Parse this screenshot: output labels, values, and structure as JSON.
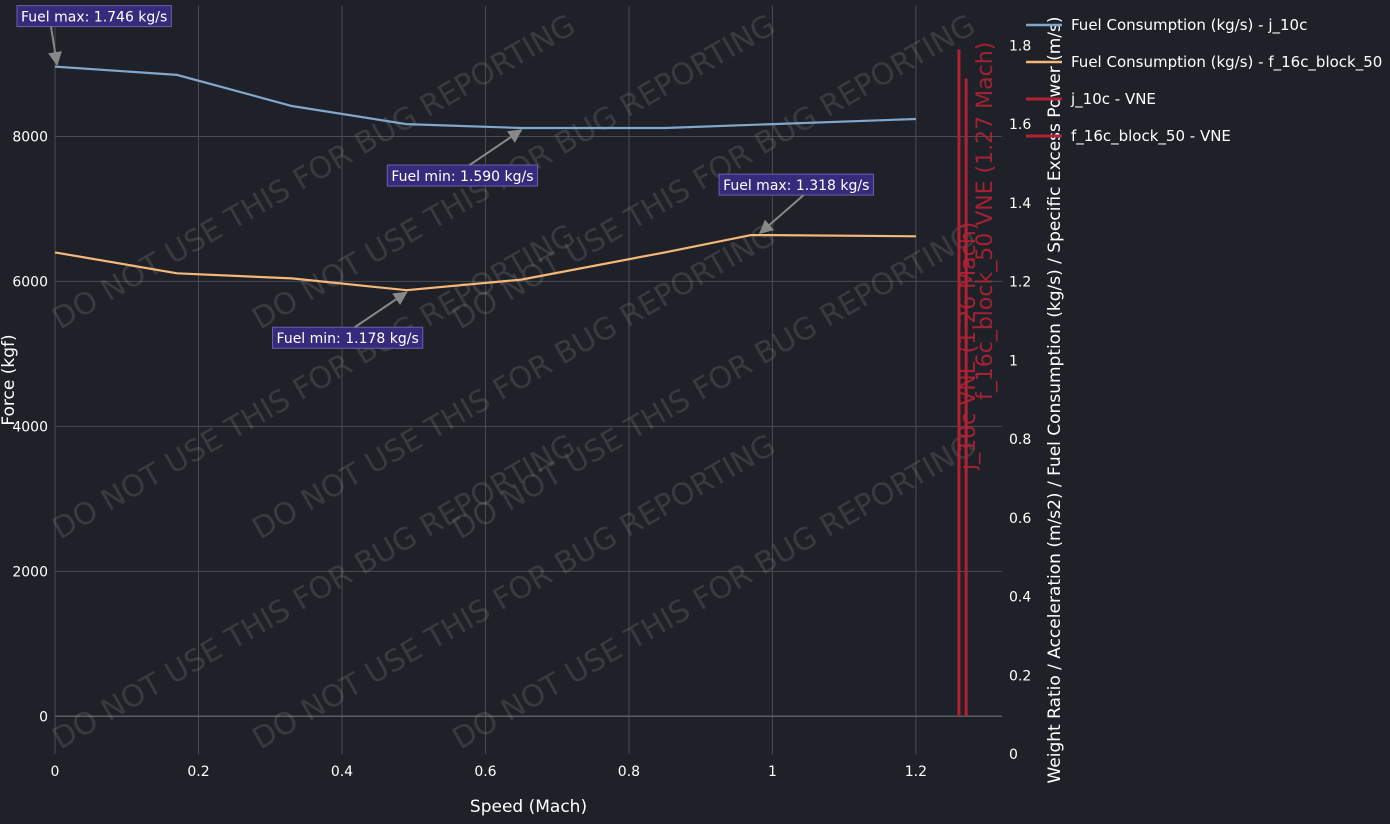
{
  "watermark": "DO NOT USE THIS FOR BUG REPORTING",
  "chart_data": {
    "type": "line",
    "xlabel": "Speed (Mach)",
    "ylabel_left": "Force (kgf)",
    "ylabel_right": "Weight Ratio / Acceleration (m/s2) / Fuel Consumption (kg/s) / Specific Excess Power (m/s)",
    "xlim": [
      0,
      1.32
    ],
    "ylim_left": [
      -520,
      9800
    ],
    "ylim_right": [
      0,
      1.9
    ],
    "x_ticks": [
      0,
      0.2,
      0.4,
      0.6,
      0.8,
      1,
      1.2
    ],
    "x_tick_labels": [
      "0",
      "0.2",
      "0.4",
      "0.6",
      "0.8",
      "1",
      "1.2"
    ],
    "y_left_ticks": [
      0,
      2000,
      4000,
      6000,
      8000
    ],
    "y_left_tick_labels": [
      "0",
      "2000",
      "4000",
      "6000",
      "8000"
    ],
    "y_right_ticks": [
      0,
      0.2,
      0.4,
      0.6,
      0.8,
      1,
      1.2,
      1.4,
      1.6,
      1.8
    ],
    "y_right_tick_labels": [
      "0",
      "0.2",
      "0.4",
      "0.6",
      "0.8",
      "1",
      "1.2",
      "1.4",
      "1.6",
      "1.8"
    ],
    "series": [
      {
        "name": "Fuel Consumption (kg/s) - j_10c",
        "color": "#7fa8cc",
        "axis": "right",
        "x": [
          0,
          0.17,
          0.33,
          0.49,
          0.65,
          0.85,
          1.0,
          1.2
        ],
        "y": [
          1.746,
          1.725,
          1.646,
          1.6,
          1.59,
          1.59,
          1.6,
          1.613
        ]
      },
      {
        "name": "Fuel Consumption (kg/s) - f_16c_block_50",
        "color": "#f5b87a",
        "axis": "right",
        "x": [
          0,
          0.17,
          0.33,
          0.49,
          0.65,
          0.85,
          0.97,
          1.0,
          1.2
        ],
        "y": [
          1.274,
          1.221,
          1.208,
          1.178,
          1.205,
          1.274,
          1.318,
          1.318,
          1.315
        ]
      },
      {
        "name": "j_10c - VNE",
        "color": "#b22234",
        "type": "vline",
        "x": 1.26,
        "y_range": [
          0,
          9200
        ],
        "label": "j_10c VNE (1.26 Mach)"
      },
      {
        "name": "f_16c_block_50 - VNE",
        "color": "#b22234",
        "type": "vline",
        "x": 1.27,
        "y_range": [
          0,
          8800
        ],
        "label": "f_16c_block_50 VNE (1.27 Mach)"
      }
    ],
    "annotations": [
      {
        "text": "Fuel max: 1.746 kg/s",
        "x": 0,
        "y": 1.746,
        "axis": "right",
        "label_offset": [
          -34,
          -50
        ]
      },
      {
        "text": "Fuel min: 1.590 kg/s",
        "x": 0.65,
        "y": 1.59,
        "axis": "right",
        "label_offset": [
          -130,
          48
        ]
      },
      {
        "text": "Fuel max: 1.318 kg/s",
        "x": 0.98,
        "y": 1.318,
        "axis": "right",
        "label_offset": [
          -35,
          -50
        ]
      },
      {
        "text": "Fuel min: 1.178 kg/s",
        "x": 0.49,
        "y": 1.178,
        "axis": "right",
        "label_offset": [
          -130,
          48
        ]
      }
    ],
    "legend_position": "top-right",
    "grid": true
  }
}
